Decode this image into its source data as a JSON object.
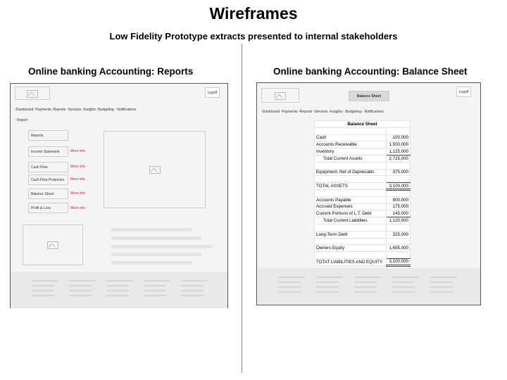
{
  "title": "Wireframes",
  "subtitle": "Low Fidelity Prototype extracts presented to internal stakeholders",
  "left": {
    "heading": "Online banking Accounting: Reports",
    "logoff": "Logoff",
    "nav": "▫Dashboard ▫Payments ▫Reports ▫Services ▫Insights ▫Budgeting ▫ Notifications",
    "breadcrumb": "▫ Report",
    "reports_label": "Reports",
    "items": [
      {
        "label": "Income Statement",
        "link": "More info"
      },
      {
        "label": "Cash Flow",
        "link": "More info"
      },
      {
        "label": "Cash Flow Projection",
        "link": "More info"
      },
      {
        "label": "Balance Sheet",
        "link": "More info"
      },
      {
        "label": "Profit & Loss",
        "link": "More info"
      }
    ]
  },
  "right": {
    "heading": "Online banking Accounting: Balance Sheet",
    "header_title": "Balance Sheet",
    "logoff": "Logoff",
    "nav": "▫Dashboard ▫Payments ▫Reports ▫Services ▫Insights ▫ Budgeting ▫ Notifications",
    "table_title": "Balance Sheet",
    "rows": [
      {
        "label": "",
        "value": ""
      },
      {
        "label": "Cash",
        "value": "100,000"
      },
      {
        "label": "Accounts Receivable",
        "value": "1,500,000"
      },
      {
        "label": "Inventory",
        "value": "1,125,000",
        "style": "ul"
      },
      {
        "label": "Total Current Assets",
        "value": "2,725,000",
        "style": "ind"
      },
      {
        "label": "",
        "value": ""
      },
      {
        "label": "Equipment, Net of Depreciatin",
        "value": "375,000"
      },
      {
        "label": "",
        "value": "",
        "style": "ul"
      },
      {
        "label": "TOTAL ASSETS",
        "value": "3,100,000",
        "style": "dbl"
      },
      {
        "label": "",
        "value": ""
      },
      {
        "label": "Accounts Payable",
        "value": "800,000"
      },
      {
        "label": "Accrued Expenses",
        "value": "175,000"
      },
      {
        "label": "Current Portions of L.T. Debt",
        "value": "145,000",
        "style": "ul"
      },
      {
        "label": "Total Current Liabilities",
        "value": "1,120,000",
        "style": "ind"
      },
      {
        "label": "",
        "value": ""
      },
      {
        "label": "Long-Term Debt",
        "value": "325,000"
      },
      {
        "label": "",
        "value": ""
      },
      {
        "label": "Owners Equity",
        "value": "1,655,000"
      },
      {
        "label": "",
        "value": "",
        "style": "ul"
      },
      {
        "label": "TOTAT LIABILITIES AND EQUITY",
        "value": "3,100,000",
        "style": "dbl"
      }
    ]
  }
}
